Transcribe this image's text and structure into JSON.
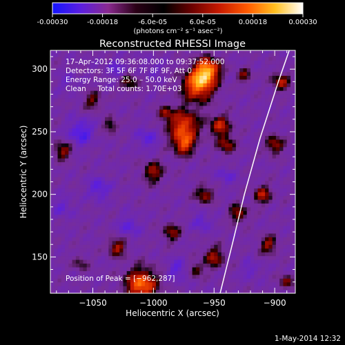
{
  "colorbar": {
    "ticks": [
      "-0.00030",
      "-0.00018",
      "-6.0e-05",
      "6.0e-05",
      "0.00018",
      "0.00030"
    ],
    "units": "(photons cm⁻² s⁻¹ asec⁻²)",
    "range": [
      -0.0003,
      0.0003
    ],
    "colors": [
      "#1414ff",
      "#5a1ee0",
      "#8a2a90",
      "#2a0016",
      "#000000",
      "#6a0000",
      "#c81a00",
      "#ff5a00",
      "#ffc020",
      "#ffffff"
    ]
  },
  "footer": {
    "date": "1-May-2014 12:32"
  },
  "chart_data": {
    "type": "heatmap",
    "title": "Reconstructed RHESSI Image",
    "xlabel": "Heliocentric X (arcsec)",
    "ylabel": "Heliocentric Y (arcsec)",
    "xlim": [
      -1085,
      -883
    ],
    "ylim": [
      121,
      315
    ],
    "xticks": [
      -1050,
      -1000,
      -950,
      -900
    ],
    "xtick_labels": [
      "−1050",
      "−1000",
      "−950",
      "−900"
    ],
    "yticks": [
      150,
      200,
      250,
      300
    ],
    "ytick_labels": [
      "150",
      "200",
      "250",
      "300"
    ],
    "annotations": [
      "17–Apr–2012 09:36:08.000 to 09:37:52.000",
      "Detectors: 3F 5F 6F 7F 8F 9F, Att 0",
      "Energy Range: 25.0 – 50.0 keV",
      "Clean     Total counts: 1.70E+03"
    ],
    "peak_label": "Position of Peak = [−962,287]",
    "peak": [
      -962,
      287
    ],
    "limb": [
      [
        -945,
        121
      ],
      [
        -935,
        160
      ],
      [
        -925,
        200
      ],
      [
        -912,
        245
      ],
      [
        -897,
        290
      ],
      [
        -888,
        315
      ]
    ],
    "sources": [
      {
        "x": -963,
        "y": 288,
        "amp": 1.0,
        "s": 9
      },
      {
        "x": -955,
        "y": 300,
        "amp": 0.9,
        "s": 7
      },
      {
        "x": -975,
        "y": 255,
        "amp": 0.8,
        "s": 9
      },
      {
        "x": -975,
        "y": 240,
        "amp": 0.7,
        "s": 6
      },
      {
        "x": -945,
        "y": 255,
        "amp": 0.65,
        "s": 6
      },
      {
        "x": -940,
        "y": 240,
        "amp": 0.55,
        "s": 5
      },
      {
        "x": -1010,
        "y": 128,
        "amp": 0.95,
        "s": 9
      },
      {
        "x": -1030,
        "y": 158,
        "amp": 0.6,
        "s": 5
      },
      {
        "x": -1000,
        "y": 218,
        "amp": 0.55,
        "s": 6
      },
      {
        "x": -958,
        "y": 200,
        "amp": 0.55,
        "s": 5
      },
      {
        "x": -1075,
        "y": 235,
        "amp": 0.55,
        "s": 5
      },
      {
        "x": -1050,
        "y": 275,
        "amp": 0.45,
        "s": 5
      },
      {
        "x": -1035,
        "y": 255,
        "amp": 0.45,
        "s": 4
      },
      {
        "x": -1020,
        "y": 290,
        "amp": 0.45,
        "s": 5
      },
      {
        "x": -985,
        "y": 170,
        "amp": 0.5,
        "s": 5
      },
      {
        "x": -950,
        "y": 150,
        "amp": 0.55,
        "s": 6
      },
      {
        "x": -930,
        "y": 185,
        "amp": 0.55,
        "s": 5
      },
      {
        "x": -910,
        "y": 200,
        "amp": 0.6,
        "s": 5
      },
      {
        "x": -905,
        "y": 160,
        "amp": 0.55,
        "s": 5
      },
      {
        "x": -900,
        "y": 240,
        "amp": 0.6,
        "s": 5
      },
      {
        "x": -895,
        "y": 290,
        "amp": 0.6,
        "s": 5
      },
      {
        "x": -890,
        "y": 130,
        "amp": 0.5,
        "s": 4
      },
      {
        "x": -925,
        "y": 295,
        "amp": 0.45,
        "s": 4
      },
      {
        "x": -965,
        "y": 140,
        "amp": 0.45,
        "s": 4
      },
      {
        "x": -1060,
        "y": 145,
        "amp": 0.35,
        "s": 4
      },
      {
        "x": -990,
        "y": 265,
        "amp": 0.5,
        "s": 4
      }
    ],
    "sinks": [
      {
        "x": -1060,
        "y": 250,
        "amp": 1.0,
        "s": 7
      },
      {
        "x": -1045,
        "y": 205,
        "amp": 0.85,
        "s": 6
      },
      {
        "x": -1020,
        "y": 175,
        "amp": 0.7,
        "s": 6
      },
      {
        "x": -1005,
        "y": 245,
        "amp": 0.75,
        "s": 6
      },
      {
        "x": -960,
        "y": 178,
        "amp": 0.7,
        "s": 5
      },
      {
        "x": -980,
        "y": 140,
        "amp": 0.7,
        "s": 6
      },
      {
        "x": -940,
        "y": 215,
        "amp": 0.6,
        "s": 5
      },
      {
        "x": -1030,
        "y": 300,
        "amp": 0.55,
        "s": 6
      },
      {
        "x": -1075,
        "y": 190,
        "amp": 0.55,
        "s": 6
      },
      {
        "x": -920,
        "y": 140,
        "amp": 0.55,
        "s": 5
      },
      {
        "x": -1000,
        "y": 300,
        "amp": 0.5,
        "s": 5
      },
      {
        "x": -1070,
        "y": 290,
        "amp": 0.45,
        "s": 5
      }
    ]
  }
}
